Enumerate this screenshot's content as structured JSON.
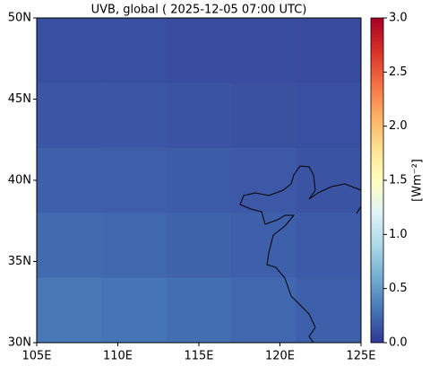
{
  "chart_data": {
    "type": "heatmap",
    "title": "UVB, global ( 2025-12-05 07:00 UTC)",
    "xlim": [
      105,
      125
    ],
    "ylim": [
      30,
      50
    ],
    "xticks": [
      {
        "value": 105,
        "label": "105E"
      },
      {
        "value": 110,
        "label": "110E"
      },
      {
        "value": 115,
        "label": "115E"
      },
      {
        "value": 120,
        "label": "120E"
      },
      {
        "value": 125,
        "label": "125E"
      }
    ],
    "yticks": [
      {
        "value": 30,
        "label": "30N"
      },
      {
        "value": 35,
        "label": "35N"
      },
      {
        "value": 40,
        "label": "40N"
      },
      {
        "value": 45,
        "label": "45N"
      },
      {
        "value": 50,
        "label": "50N"
      }
    ],
    "x": [
      105,
      109,
      113,
      117,
      121,
      125
    ],
    "y": [
      50,
      46,
      42,
      38,
      34,
      30
    ],
    "values": [
      [
        0.12,
        0.12,
        0.11,
        0.11,
        0.1
      ],
      [
        0.15,
        0.15,
        0.14,
        0.13,
        0.12
      ],
      [
        0.2,
        0.19,
        0.18,
        0.16,
        0.14
      ],
      [
        0.25,
        0.24,
        0.22,
        0.2,
        0.17
      ],
      [
        0.32,
        0.3,
        0.27,
        0.24,
        0.2
      ]
    ],
    "colormap": "RdYlBu_r",
    "colorbar": {
      "label": "[Wm⁻²]",
      "lim": [
        0,
        3
      ],
      "ticks": [
        {
          "value": 0,
          "label": "0.0"
        },
        {
          "value": 0.5,
          "label": "0.5"
        },
        {
          "value": 1,
          "label": "1.0"
        },
        {
          "value": 1.5,
          "label": "1.5"
        },
        {
          "value": 2,
          "label": "2.0"
        },
        {
          "value": 2.5,
          "label": "2.5"
        },
        {
          "value": 3,
          "label": "3.0"
        }
      ]
    }
  }
}
